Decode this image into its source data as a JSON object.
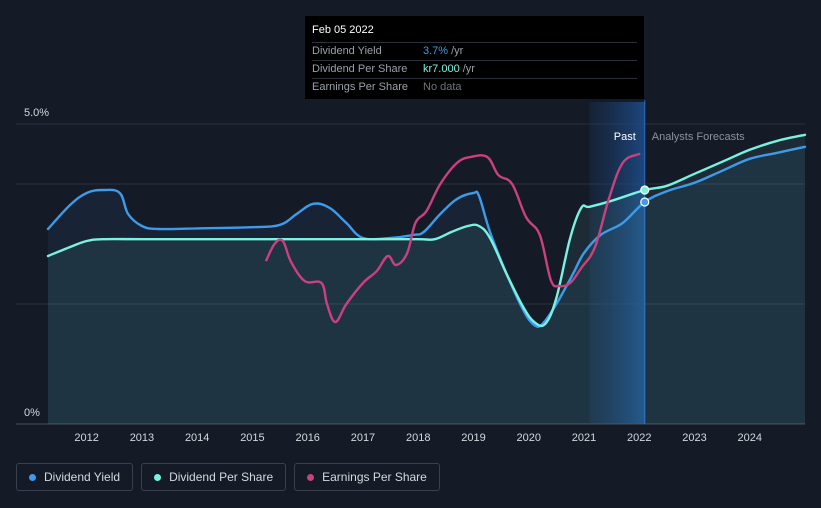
{
  "tooltip": {
    "date": "Feb 05 2022",
    "rows": [
      {
        "name": "Dividend Yield",
        "value": "3.7%",
        "unit": "/yr",
        "color": "#3d9be9"
      },
      {
        "name": "Dividend Per Share",
        "value": "kr7.000",
        "unit": "/yr",
        "color": "#79f2e0"
      },
      {
        "name": "Earnings Per Share",
        "value": "No data",
        "unit": "",
        "color": "#6e747c"
      }
    ]
  },
  "regions": {
    "past": "Past",
    "forecast": "Analysts Forecasts"
  },
  "legend": [
    {
      "label": "Dividend Yield",
      "color": "#3d9be9"
    },
    {
      "label": "Dividend Per Share",
      "color": "#79f2e0"
    },
    {
      "label": "Earnings Per Share",
      "color": "#c9417e"
    }
  ],
  "chart_data": {
    "type": "line",
    "x_range": [
      2011.3,
      2025.0
    ],
    "y_range": [
      0,
      5.0
    ],
    "y_tick_labels": [
      {
        "value": 5.0,
        "label": "5.0%"
      },
      {
        "value": 0,
        "label": "0%"
      }
    ],
    "x_tick_labels": [
      "2012",
      "2013",
      "2014",
      "2015",
      "2016",
      "2017",
      "2018",
      "2019",
      "2020",
      "2021",
      "2022",
      "2023",
      "2024"
    ],
    "grid_values": [
      0,
      2.0,
      4.0,
      5.0
    ],
    "past_region": [
      2021.1,
      2022.1
    ],
    "current_x": 2022.1,
    "series": [
      {
        "name": "Dividend Yield",
        "color": "#3d9be9",
        "filled": true,
        "points": [
          [
            2011.3,
            3.25
          ],
          [
            2011.7,
            3.65
          ],
          [
            2012.0,
            3.85
          ],
          [
            2012.3,
            3.9
          ],
          [
            2012.6,
            3.85
          ],
          [
            2012.75,
            3.5
          ],
          [
            2013.0,
            3.3
          ],
          [
            2013.3,
            3.25
          ],
          [
            2014.0,
            3.26
          ],
          [
            2015.0,
            3.28
          ],
          [
            2015.5,
            3.32
          ],
          [
            2015.8,
            3.5
          ],
          [
            2016.1,
            3.67
          ],
          [
            2016.4,
            3.6
          ],
          [
            2016.7,
            3.35
          ],
          [
            2017.0,
            3.1
          ],
          [
            2017.5,
            3.1
          ],
          [
            2017.9,
            3.15
          ],
          [
            2018.1,
            3.2
          ],
          [
            2018.4,
            3.5
          ],
          [
            2018.7,
            3.75
          ],
          [
            2019.0,
            3.85
          ],
          [
            2019.1,
            3.8
          ],
          [
            2019.3,
            3.2
          ],
          [
            2019.6,
            2.5
          ],
          [
            2019.9,
            1.9
          ],
          [
            2020.1,
            1.65
          ],
          [
            2020.25,
            1.67
          ],
          [
            2020.5,
            2.0
          ],
          [
            2020.8,
            2.5
          ],
          [
            2021.0,
            2.85
          ],
          [
            2021.3,
            3.15
          ],
          [
            2021.7,
            3.35
          ],
          [
            2022.1,
            3.7
          ],
          [
            2022.5,
            3.88
          ],
          [
            2023.0,
            4.02
          ],
          [
            2023.5,
            4.22
          ],
          [
            2024.0,
            4.42
          ],
          [
            2024.5,
            4.52
          ],
          [
            2025.0,
            4.62
          ]
        ]
      },
      {
        "name": "Dividend Per Share",
        "color": "#79f2e0",
        "filled": true,
        "points": [
          [
            2011.3,
            2.8
          ],
          [
            2011.7,
            2.95
          ],
          [
            2012.0,
            3.05
          ],
          [
            2012.3,
            3.08
          ],
          [
            2013.0,
            3.08
          ],
          [
            2014.0,
            3.08
          ],
          [
            2015.0,
            3.08
          ],
          [
            2016.0,
            3.08
          ],
          [
            2017.0,
            3.08
          ],
          [
            2018.0,
            3.08
          ],
          [
            2018.3,
            3.08
          ],
          [
            2018.6,
            3.2
          ],
          [
            2018.9,
            3.3
          ],
          [
            2019.1,
            3.3
          ],
          [
            2019.3,
            3.1
          ],
          [
            2019.6,
            2.5
          ],
          [
            2019.9,
            1.95
          ],
          [
            2020.1,
            1.7
          ],
          [
            2020.3,
            1.67
          ],
          [
            2020.5,
            2.1
          ],
          [
            2020.75,
            3.1
          ],
          [
            2020.95,
            3.6
          ],
          [
            2021.1,
            3.62
          ],
          [
            2021.5,
            3.72
          ],
          [
            2022.1,
            3.9
          ],
          [
            2022.5,
            3.97
          ],
          [
            2023.0,
            4.17
          ],
          [
            2023.5,
            4.37
          ],
          [
            2024.0,
            4.57
          ],
          [
            2024.5,
            4.72
          ],
          [
            2025.0,
            4.82
          ]
        ]
      },
      {
        "name": "Earnings Per Share",
        "color": "#c9417e",
        "filled": false,
        "points": [
          [
            2015.25,
            2.73
          ],
          [
            2015.4,
            3.0
          ],
          [
            2015.55,
            3.05
          ],
          [
            2015.7,
            2.7
          ],
          [
            2015.95,
            2.38
          ],
          [
            2016.25,
            2.35
          ],
          [
            2016.35,
            2.0
          ],
          [
            2016.5,
            1.7
          ],
          [
            2016.7,
            2.0
          ],
          [
            2017.0,
            2.35
          ],
          [
            2017.25,
            2.55
          ],
          [
            2017.45,
            2.8
          ],
          [
            2017.6,
            2.65
          ],
          [
            2017.8,
            2.85
          ],
          [
            2017.95,
            3.35
          ],
          [
            2018.15,
            3.55
          ],
          [
            2018.4,
            4.0
          ],
          [
            2018.7,
            4.35
          ],
          [
            2018.95,
            4.45
          ],
          [
            2019.25,
            4.45
          ],
          [
            2019.45,
            4.15
          ],
          [
            2019.7,
            4.0
          ],
          [
            2019.95,
            3.45
          ],
          [
            2020.2,
            3.15
          ],
          [
            2020.4,
            2.4
          ],
          [
            2020.55,
            2.3
          ],
          [
            2020.75,
            2.35
          ],
          [
            2020.95,
            2.6
          ],
          [
            2021.2,
            2.95
          ],
          [
            2021.45,
            3.75
          ],
          [
            2021.7,
            4.35
          ],
          [
            2022.0,
            4.5
          ]
        ]
      }
    ],
    "markers": [
      {
        "series": "Dividend Per Share",
        "x": 2022.1,
        "y": 3.9
      },
      {
        "series": "Dividend Yield",
        "x": 2022.1,
        "y": 3.7
      }
    ]
  }
}
